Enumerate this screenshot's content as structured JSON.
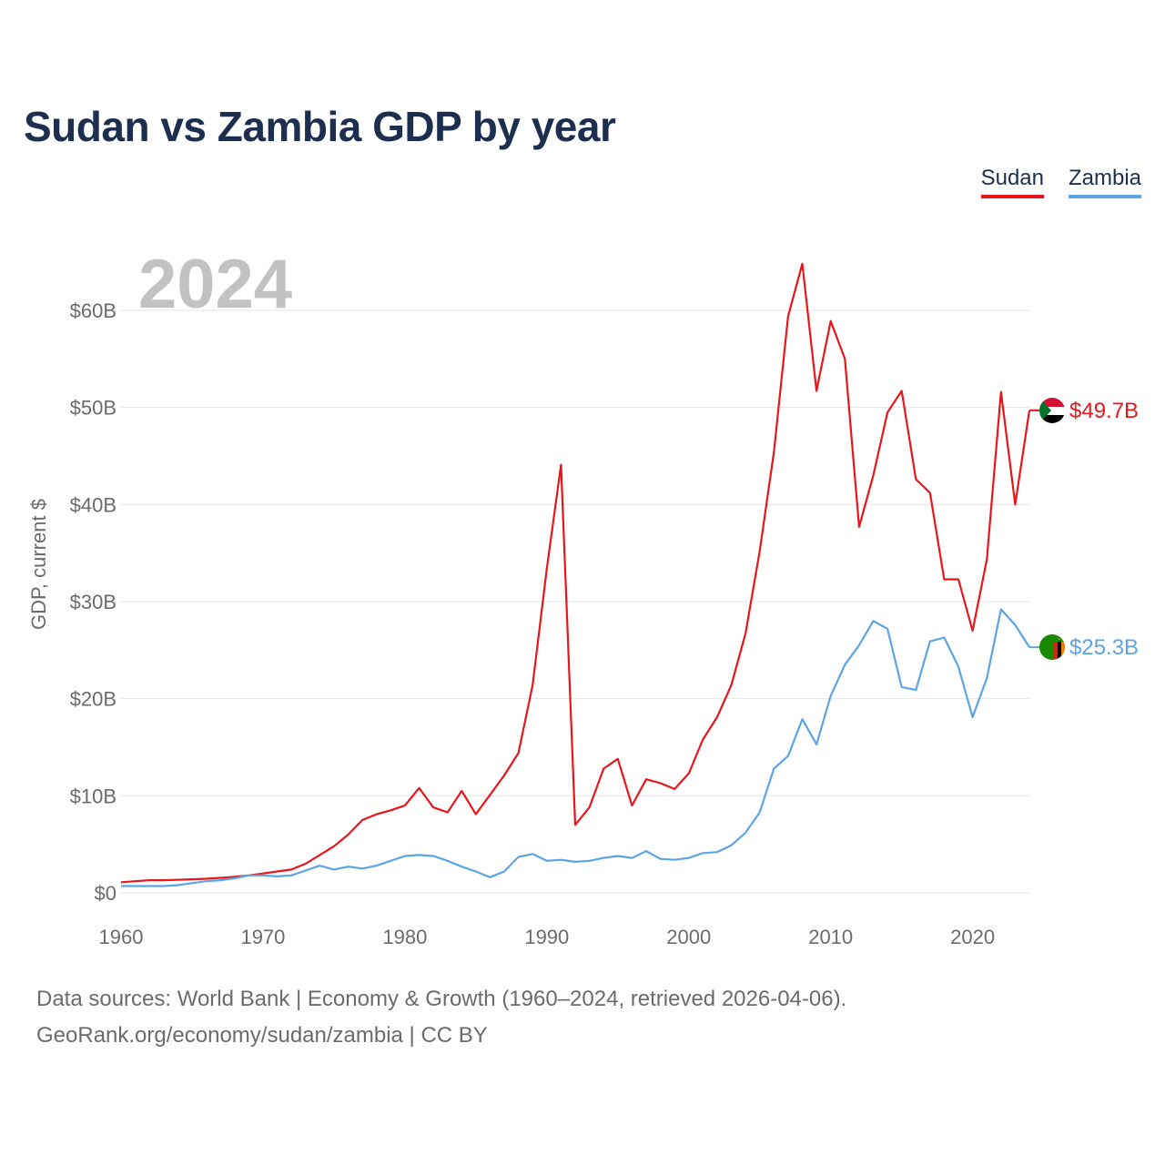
{
  "title": "Sudan vs Zambia GDP by year",
  "legend": [
    {
      "name": "Sudan",
      "color": "#e8161b"
    },
    {
      "name": "Zambia",
      "color": "#5ba4e5"
    }
  ],
  "footer": {
    "source": "Data sources: World Bank | Economy & Growth (1960–2024, retrieved 2026-04-06).",
    "credit": "GeoRank.org/economy/sudan/zambia | CC BY"
  },
  "chart_data": {
    "type": "line",
    "title": "Sudan vs Zambia GDP by year",
    "year_label": "2024",
    "xlabel": "",
    "ylabel": "GDP, current $",
    "xlim": [
      1960,
      2024
    ],
    "ylim": [
      0,
      60
    ],
    "unit": "billion USD",
    "x_ticks": [
      1960,
      1970,
      1980,
      1990,
      2000,
      2010,
      2020
    ],
    "y_ticks": [
      {
        "value": 0,
        "label": "$0"
      },
      {
        "value": 10,
        "label": "$10B"
      },
      {
        "value": 20,
        "label": "$20B"
      },
      {
        "value": 30,
        "label": "$30B"
      },
      {
        "value": 40,
        "label": "$40B"
      },
      {
        "value": 50,
        "label": "$50B"
      },
      {
        "value": 60,
        "label": "$60B"
      }
    ],
    "grid": true,
    "legend_position": "top-right",
    "x": [
      1960,
      1961,
      1962,
      1963,
      1964,
      1965,
      1966,
      1967,
      1968,
      1969,
      1970,
      1971,
      1972,
      1973,
      1974,
      1975,
      1976,
      1977,
      1978,
      1979,
      1980,
      1981,
      1982,
      1983,
      1984,
      1985,
      1986,
      1987,
      1988,
      1989,
      1990,
      1991,
      1992,
      1993,
      1994,
      1995,
      1996,
      1997,
      1998,
      1999,
      2000,
      2001,
      2002,
      2003,
      2004,
      2005,
      2006,
      2007,
      2008,
      2009,
      2010,
      2011,
      2012,
      2013,
      2014,
      2015,
      2016,
      2017,
      2018,
      2019,
      2020,
      2021,
      2022,
      2023,
      2024
    ],
    "series": [
      {
        "name": "Sudan",
        "color": "#e8161b",
        "end_label": "$49.7B",
        "values": [
          1.1,
          1.2,
          1.3,
          1.3,
          1.35,
          1.4,
          1.45,
          1.55,
          1.65,
          1.8,
          2.0,
          2.2,
          2.4,
          3.0,
          3.9,
          4.8,
          6.0,
          7.5,
          8.1,
          8.5,
          9.0,
          10.8,
          8.8,
          8.3,
          10.5,
          8.1,
          10.1,
          12.1,
          14.4,
          21.4,
          33.4,
          44.1,
          7.0,
          8.8,
          12.8,
          13.8,
          9.0,
          11.7,
          11.3,
          10.7,
          12.3,
          15.8,
          18.1,
          21.4,
          26.7,
          35.2,
          45.4,
          59.4,
          64.8,
          51.7,
          58.9,
          55.0,
          37.7,
          43.0,
          49.5,
          51.7,
          42.6,
          41.2,
          32.3,
          32.3,
          27.0,
          34.3,
          51.6,
          40.0,
          49.7
        ]
      },
      {
        "name": "Zambia",
        "color": "#5ba4e5",
        "end_label": "$25.3B",
        "values": [
          0.7,
          0.7,
          0.7,
          0.7,
          0.8,
          1.0,
          1.2,
          1.3,
          1.5,
          1.8,
          1.8,
          1.7,
          1.8,
          2.3,
          2.8,
          2.4,
          2.7,
          2.5,
          2.8,
          3.3,
          3.8,
          3.9,
          3.8,
          3.3,
          2.7,
          2.2,
          1.6,
          2.2,
          3.7,
          4.0,
          3.3,
          3.4,
          3.2,
          3.3,
          3.6,
          3.8,
          3.6,
          4.3,
          3.5,
          3.4,
          3.6,
          4.1,
          4.2,
          4.9,
          6.2,
          8.3,
          12.8,
          14.1,
          17.9,
          15.3,
          20.3,
          23.5,
          25.5,
          28.0,
          27.2,
          21.2,
          20.9,
          25.9,
          26.3,
          23.3,
          18.1,
          22.1,
          29.2,
          27.6,
          25.3
        ]
      }
    ]
  }
}
